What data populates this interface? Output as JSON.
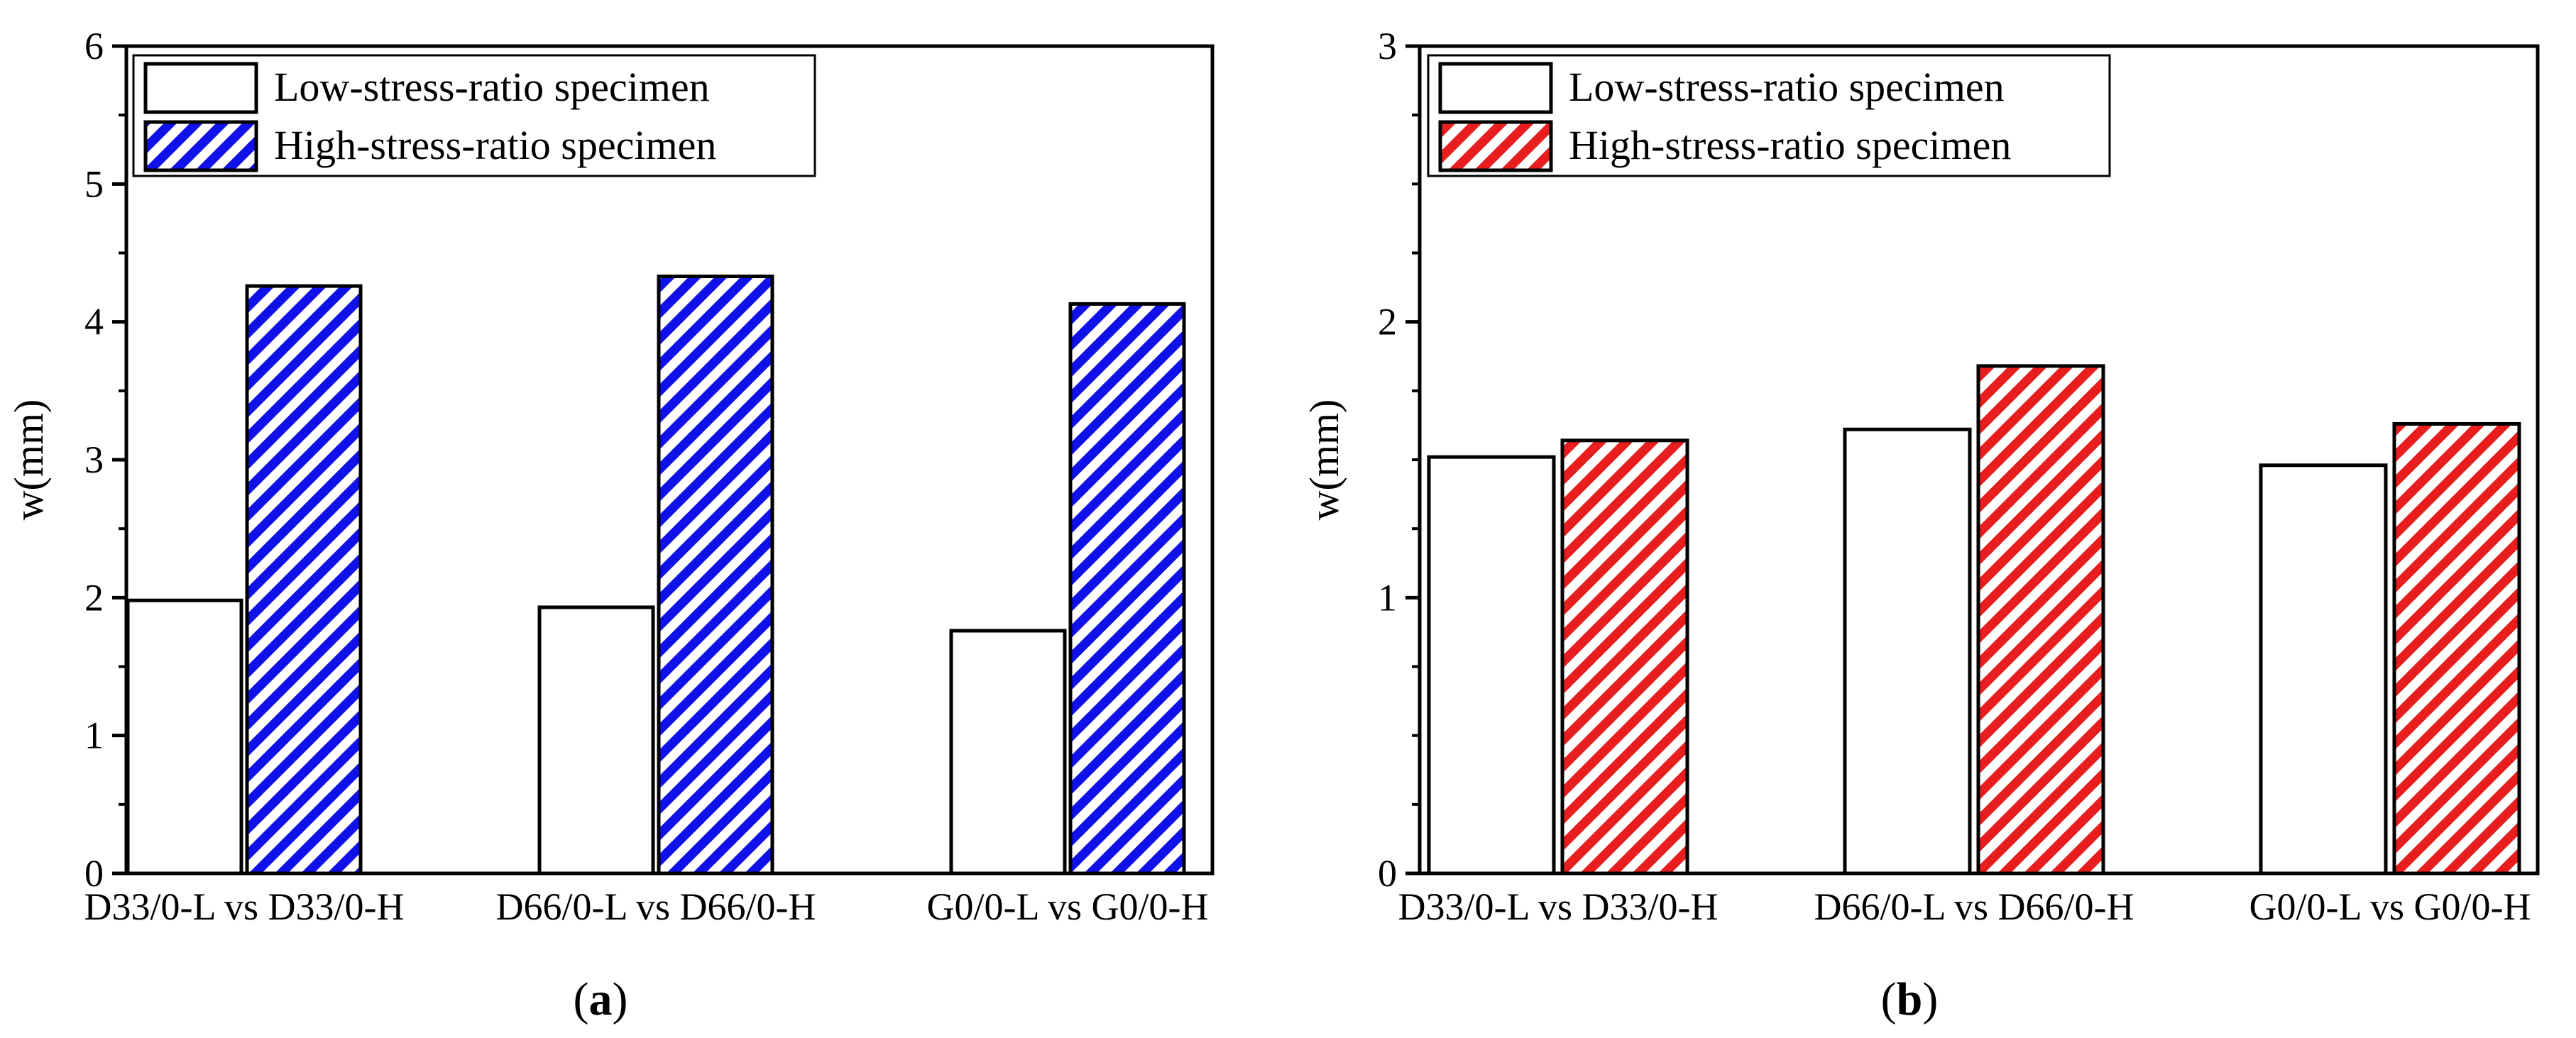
{
  "chart_data": [
    {
      "panel": "a",
      "panel_label_open": "(",
      "panel_label_letter": "a",
      "panel_label_close": ")",
      "type": "bar",
      "ylabel": "w(mm)",
      "xlabel": "",
      "ylim": [
        0,
        6
      ],
      "yticks": [
        "0",
        "1",
        "2",
        "3",
        "4",
        "5",
        "6"
      ],
      "categories": [
        "D33/0-L vs D33/0-H",
        "D66/0-L vs D66/0-H",
        "G0/0-L vs G0/0-H"
      ],
      "series": [
        {
          "name": "Low-stress-ratio specimen",
          "values": [
            1.98,
            1.93,
            1.76
          ],
          "fill": "#ffffff",
          "hatch": false
        },
        {
          "name": "High-stress-ratio specimen",
          "values": [
            4.26,
            4.33,
            4.13
          ],
          "fill": "#1010e8",
          "hatch": true
        }
      ],
      "legend_position": "top-left"
    },
    {
      "panel": "b",
      "panel_label_open": "(",
      "panel_label_letter": "b",
      "panel_label_close": ")",
      "type": "bar",
      "ylabel": "w(mm)",
      "xlabel": "",
      "ylim": [
        0,
        3
      ],
      "yticks": [
        "0",
        "1",
        "2",
        "3"
      ],
      "categories": [
        "D33/0-L vs D33/0-H",
        "D66/0-L vs D66/0-H",
        "G0/0-L vs G0/0-H"
      ],
      "series": [
        {
          "name": "Low-stress-ratio specimen",
          "values": [
            1.51,
            1.61,
            1.48
          ],
          "fill": "#ffffff",
          "hatch": false
        },
        {
          "name": "High-stress-ratio specimen",
          "values": [
            1.57,
            1.84,
            1.63
          ],
          "fill": "#e81e1e",
          "hatch": true
        }
      ],
      "legend_position": "top-left"
    }
  ]
}
